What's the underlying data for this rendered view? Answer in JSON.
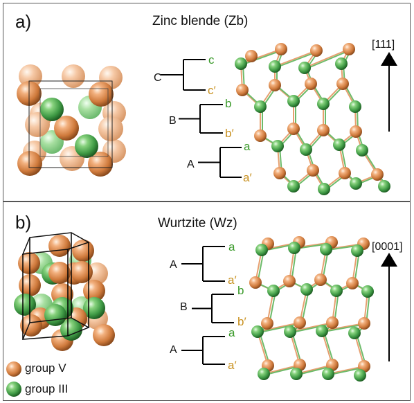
{
  "panels": [
    {
      "label": "a)",
      "title": "Zinc blende (Zb)",
      "direction": "[111]",
      "stacking": [
        {
          "layer": "C",
          "upper": "c",
          "lower": "c′"
        },
        {
          "layer": "B",
          "upper": "b",
          "lower": "b′"
        },
        {
          "layer": "A",
          "upper": "a",
          "lower": "a′"
        }
      ]
    },
    {
      "label": "b)",
      "title": "Wurtzite (Wz)",
      "direction": "[0001]",
      "stacking": [
        {
          "layer": "A",
          "upper": "a",
          "lower": "a′"
        },
        {
          "layer": "B",
          "upper": "b",
          "lower": "b′"
        },
        {
          "layer": "A",
          "upper": "a",
          "lower": "a′"
        }
      ]
    }
  ],
  "legend": [
    {
      "label": "group V",
      "color": "#d9824a"
    },
    {
      "label": "group III",
      "color": "#3f9a45"
    }
  ],
  "colors": {
    "group_v": "#d9824a",
    "group_iii": "#3f9a45",
    "upper_letter": "#3a9a2a",
    "lower_letter": "#c8901e"
  }
}
